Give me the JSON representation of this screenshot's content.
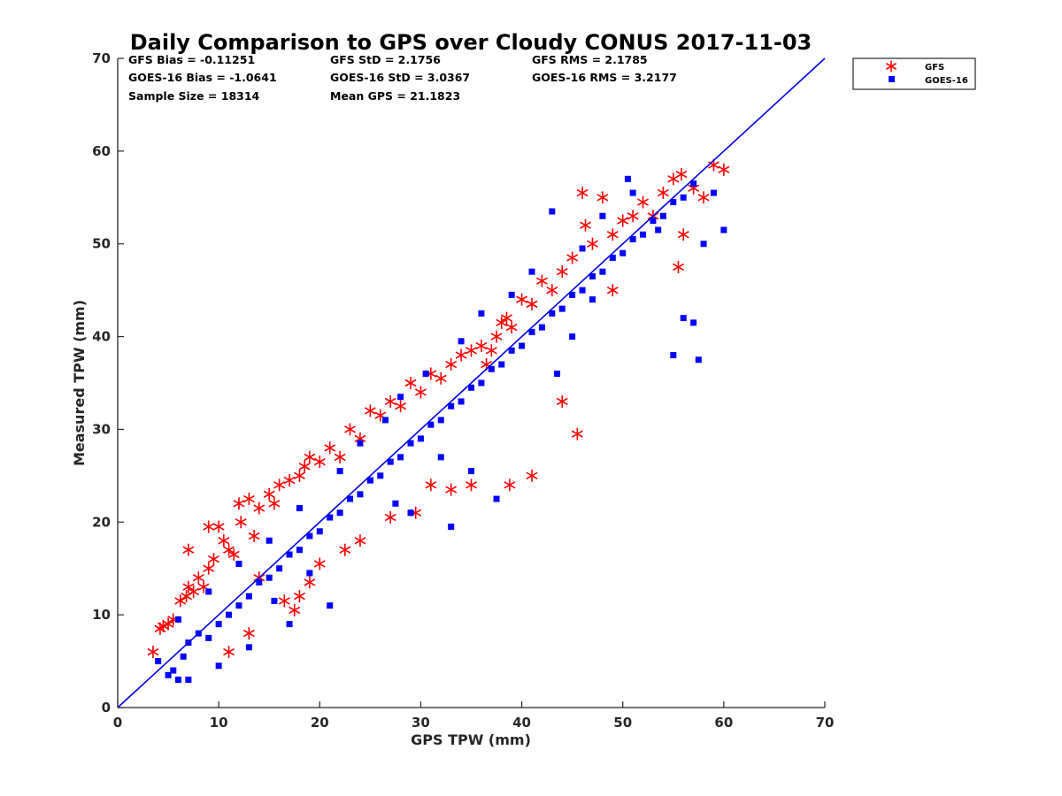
{
  "chart_data": {
    "type": "scatter",
    "title": "Daily Comparison to GPS over Cloudy CONUS 2017-11-03",
    "xlabel": "GPS TPW (mm)",
    "ylabel": "Measured TPW (mm)",
    "xlim": [
      0,
      70
    ],
    "ylim": [
      0,
      70
    ],
    "xticks": [
      "0",
      "10",
      "20",
      "30",
      "40",
      "50",
      "60",
      "70"
    ],
    "yticks": [
      "0",
      "10",
      "20",
      "30",
      "40",
      "50",
      "60",
      "70"
    ],
    "grid": false,
    "legend_position": "outside-top-right",
    "stats": [
      {
        "text": "GFS Bias = -0.11251"
      },
      {
        "text": "GFS StD = 2.1756"
      },
      {
        "text": "GFS RMS = 2.1785"
      },
      {
        "text": "GOES-16 Bias = -1.0641"
      },
      {
        "text": "GOES-16 StD = 3.0367"
      },
      {
        "text": "GOES-16 RMS = 3.2177"
      },
      {
        "text": "Sample Size = 18314"
      },
      {
        "text": "Mean GPS = 21.1823"
      }
    ],
    "reference_line": {
      "x": [
        0,
        70
      ],
      "y": [
        0,
        70
      ],
      "color": "#0000e6"
    },
    "series": [
      {
        "name": "GFS",
        "marker": "asterisk",
        "color": "#ff0000",
        "x": [
          3.5,
          4.2,
          4.5,
          5.0,
          5.5,
          6.2,
          6.8,
          7.0,
          7.5,
          8.0,
          8.5,
          9.0,
          9.5,
          10.0,
          10.5,
          11.0,
          11.5,
          12.0,
          12.2,
          13.0,
          14.0,
          15.0,
          15.5,
          16.0,
          17.0,
          18.0,
          18.5,
          19.0,
          20.0,
          21.0,
          22.0,
          23.0,
          24.0,
          25.0,
          26.0,
          27.0,
          28.0,
          29.0,
          30.0,
          31.0,
          32.0,
          33.0,
          34.0,
          35.0,
          36.0,
          36.5,
          37.0,
          37.5,
          38.0,
          38.5,
          39.0,
          40.0,
          41.0,
          42.0,
          43.0,
          44.0,
          45.0,
          46.0,
          46.3,
          47.0,
          48.0,
          49.0,
          50.0,
          51.0,
          52.0,
          53.0,
          54.0,
          55.0,
          55.8,
          56.0,
          57.0,
          58.0,
          59.0,
          60.0,
          16.5,
          19.0,
          22.5,
          24.0,
          27.0,
          29.5,
          33.0,
          35.0,
          38.8,
          41.0,
          11.0,
          13.0,
          17.5,
          18.0,
          44.0,
          45.5,
          49.0,
          55.5,
          7.0,
          9.0,
          13.5,
          14.0,
          20.0,
          31.0
        ],
        "y": [
          6.0,
          8.5,
          8.8,
          9.0,
          9.5,
          11.5,
          12.0,
          13.0,
          12.5,
          14.0,
          13.0,
          15.0,
          16.0,
          19.5,
          18.0,
          17.0,
          16.5,
          22.0,
          20.0,
          22.5,
          21.5,
          23.0,
          22.0,
          24.0,
          24.5,
          25.0,
          26.0,
          27.0,
          26.5,
          28.0,
          27.0,
          30.0,
          29.0,
          32.0,
          31.5,
          33.0,
          32.5,
          35.0,
          34.0,
          36.0,
          35.5,
          37.0,
          38.0,
          38.5,
          39.0,
          37.0,
          38.5,
          40.0,
          41.5,
          42.0,
          41.0,
          44.0,
          43.5,
          46.0,
          45.0,
          47.0,
          48.5,
          55.5,
          52.0,
          50.0,
          55.0,
          51.0,
          52.5,
          53.0,
          54.5,
          53.0,
          55.5,
          57.0,
          57.5,
          51.0,
          56.0,
          55.0,
          58.5,
          58.0,
          11.5,
          13.5,
          17.0,
          18.0,
          20.5,
          21.0,
          23.5,
          24.0,
          24.0,
          25.0,
          6.0,
          8.0,
          10.5,
          12.0,
          33.0,
          29.5,
          45.0,
          47.5,
          17.0,
          19.5,
          18.5,
          14.0,
          15.5,
          24.0
        ]
      },
      {
        "name": "GOES-16",
        "marker": "square",
        "color": "#0000ff",
        "x": [
          4.0,
          5.0,
          5.5,
          6.0,
          6.5,
          7.0,
          8.0,
          9.0,
          10.0,
          11.0,
          12.0,
          13.0,
          14.0,
          15.0,
          16.0,
          17.0,
          18.0,
          19.0,
          20.0,
          21.0,
          22.0,
          23.0,
          24.0,
          25.0,
          26.0,
          27.0,
          28.0,
          29.0,
          30.0,
          31.0,
          32.0,
          33.0,
          34.0,
          35.0,
          36.0,
          37.0,
          38.0,
          39.0,
          40.0,
          41.0,
          42.0,
          43.0,
          44.0,
          45.0,
          46.0,
          47.0,
          48.0,
          49.0,
          50.0,
          51.0,
          52.0,
          53.0,
          54.0,
          55.0,
          56.0,
          57.0,
          58.0,
          59.0,
          45.0,
          43.0,
          57.0,
          57.5,
          56.0,
          55.0,
          50.5,
          47.0,
          37.5,
          33.0,
          27.5,
          25.0,
          21.0,
          17.0,
          13.0,
          10.0,
          7.0,
          6.0,
          9.0,
          12.0,
          15.0,
          18.0,
          22.0,
          24.0,
          26.5,
          28.0,
          30.5,
          34.0,
          36.0,
          39.0,
          41.0,
          43.5,
          46.0,
          48.0,
          51.0,
          53.5,
          60.0,
          15.5,
          19.0,
          29.0,
          32.0,
          35.0
        ],
        "y": [
          5.0,
          3.5,
          4.0,
          3.0,
          5.5,
          7.0,
          8.0,
          7.5,
          9.0,
          10.0,
          11.0,
          12.0,
          13.5,
          14.0,
          15.0,
          16.5,
          17.0,
          18.5,
          19.0,
          20.5,
          21.0,
          22.5,
          23.0,
          24.5,
          25.0,
          26.5,
          27.0,
          28.5,
          29.0,
          30.5,
          31.0,
          32.5,
          33.0,
          34.5,
          35.0,
          36.5,
          37.0,
          38.5,
          39.0,
          40.5,
          41.0,
          42.5,
          43.0,
          44.5,
          45.0,
          46.5,
          47.0,
          48.5,
          49.0,
          50.5,
          51.0,
          52.5,
          53.0,
          54.5,
          55.0,
          56.5,
          50.0,
          55.5,
          40.0,
          53.5,
          41.5,
          37.5,
          42.0,
          38.0,
          57.0,
          44.0,
          22.5,
          19.5,
          22.0,
          24.5,
          11.0,
          9.0,
          6.5,
          4.5,
          3.0,
          9.5,
          12.5,
          15.5,
          18.0,
          21.5,
          25.5,
          28.5,
          31.0,
          33.5,
          36.0,
          39.5,
          42.5,
          44.5,
          47.0,
          36.0,
          49.5,
          53.0,
          55.5,
          51.5,
          51.5,
          11.5,
          14.5,
          21.0,
          27.0,
          25.5
        ]
      }
    ]
  }
}
